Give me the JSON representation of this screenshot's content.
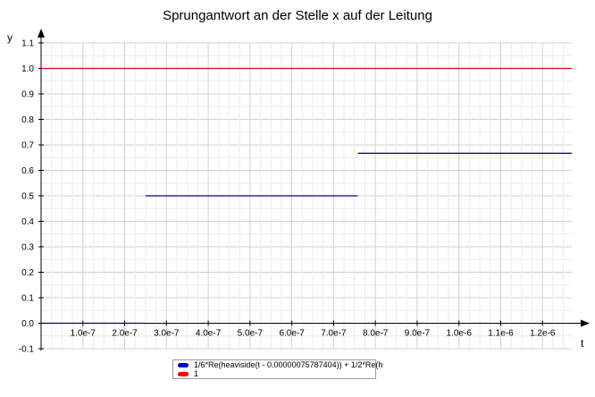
{
  "chart_data": {
    "type": "line",
    "title": "Sprungantwort an der Stelle x auf der Leitung",
    "xlabel": "t",
    "ylabel": "y",
    "xlim": [
      0,
      1.27e-06
    ],
    "ylim": [
      -0.1,
      1.1
    ],
    "grid": true,
    "x_ticks": [
      {
        "value": 1e-07,
        "label": "1.0e-7"
      },
      {
        "value": 2e-07,
        "label": "2.0e-7"
      },
      {
        "value": 3e-07,
        "label": "3.0e-7"
      },
      {
        "value": 4e-07,
        "label": "4.0e-7"
      },
      {
        "value": 5e-07,
        "label": "5.0e-7"
      },
      {
        "value": 6e-07,
        "label": "6.0e-7"
      },
      {
        "value": 7e-07,
        "label": "7.0e-7"
      },
      {
        "value": 8e-07,
        "label": "8.0e-7"
      },
      {
        "value": 9e-07,
        "label": "9.0e-7"
      },
      {
        "value": 1e-06,
        "label": "1.0e-6"
      },
      {
        "value": 1.1e-06,
        "label": "1.1e-6"
      },
      {
        "value": 1.2e-06,
        "label": "1.2e-6"
      }
    ],
    "y_ticks": [
      {
        "value": -0.1,
        "label": "-0.1"
      },
      {
        "value": 0.0,
        "label": "0.0"
      },
      {
        "value": 0.1,
        "label": "0.1"
      },
      {
        "value": 0.2,
        "label": "0.2"
      },
      {
        "value": 0.3,
        "label": "0.3"
      },
      {
        "value": 0.4,
        "label": "0.4"
      },
      {
        "value": 0.5,
        "label": "0.5"
      },
      {
        "value": 0.6,
        "label": "0.6"
      },
      {
        "value": 0.7,
        "label": "0.7"
      },
      {
        "value": 0.8,
        "label": "0.8"
      },
      {
        "value": 0.9,
        "label": "0.9"
      },
      {
        "value": 1.0,
        "label": "1.0"
      },
      {
        "value": 1.1,
        "label": "1.1"
      }
    ],
    "legend_position": "bottom",
    "series": [
      {
        "name": "1/6*Re(heaviside(t - 0.00000075787404)) + 1/2*Re(h",
        "color": "#0000cc",
        "line_color": "#00008b",
        "segments": [
          [
            [
              0,
              0
            ],
            [
              2.5e-07,
              0
            ]
          ],
          [
            [
              2.5e-07,
              0.5
            ],
            [
              7.58e-07,
              0.5
            ]
          ],
          [
            [
              7.58e-07,
              0.667
            ],
            [
              1.27e-06,
              0.667
            ]
          ]
        ]
      },
      {
        "name": "1",
        "color": "#ff0000",
        "line_color": "#e00000",
        "segments": [
          [
            [
              0,
              1.0
            ],
            [
              1.27e-06,
              1.0
            ]
          ]
        ]
      }
    ]
  }
}
